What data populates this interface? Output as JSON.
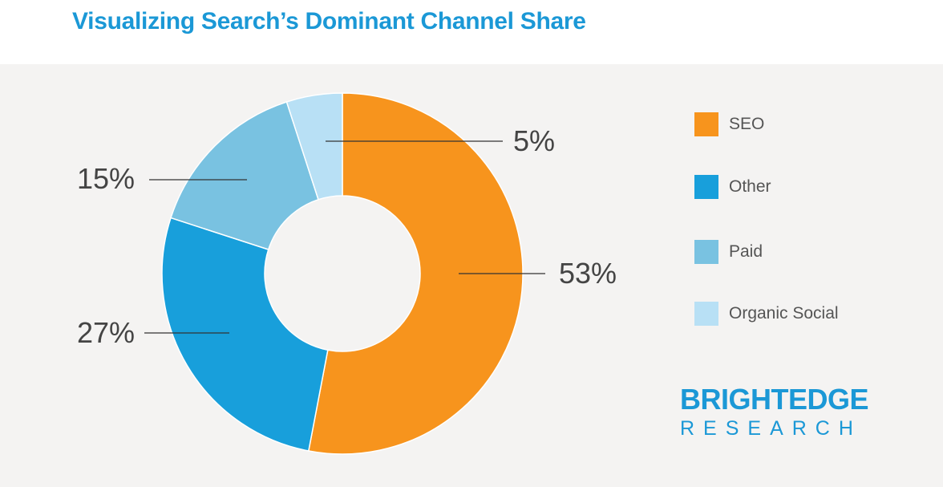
{
  "header": {
    "title": "Visualizing Search’s Dominant Channel Share"
  },
  "chart_data": {
    "type": "pie",
    "title": "Visualizing Search’s Dominant Channel Share",
    "categories": [
      "SEO",
      "Other",
      "Paid",
      "Organic Social"
    ],
    "values": [
      53,
      27,
      15,
      5
    ],
    "value_labels": [
      "53%",
      "27%",
      "15%",
      "5%"
    ],
    "colors": [
      "#f7941d",
      "#189fdb",
      "#79c2e1",
      "#b8e0f5"
    ],
    "donut": true,
    "legend_position": "right"
  },
  "legend": {
    "items": [
      {
        "label": "SEO",
        "color": "#f7941d"
      },
      {
        "label": "Other",
        "color": "#189fdb"
      },
      {
        "label": "Paid",
        "color": "#79c2e1"
      },
      {
        "label": "Organic Social",
        "color": "#b8e0f5"
      }
    ]
  },
  "brand": {
    "line1": "BRIGHTEDGE",
    "line2": "RESEARCH",
    "color": "#1b98d6"
  }
}
